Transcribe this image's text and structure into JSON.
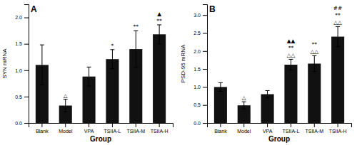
{
  "chart_data": [
    {
      "type": "bar",
      "title": "A",
      "categories": [
        "Blank",
        "Model",
        "VPA",
        "TSIIA-L",
        "TSIIA-M",
        "TSIIA-H"
      ],
      "values": [
        1.1,
        0.33,
        0.88,
        1.21,
        1.4,
        1.68
      ],
      "errors": [
        0.38,
        0.12,
        0.18,
        0.18,
        0.35,
        0.18
      ],
      "color": "#111111",
      "xlabel": "Group",
      "ylabel": "SYN mRNA",
      "ylim": [
        0,
        2.25
      ],
      "yticks": [
        {
          "value": 0.0,
          "label": "0.0"
        },
        0.5,
        {
          "value": 1.0,
          "label": "1.0"
        },
        1.5,
        {
          "value": 2.0,
          "label": "2.0"
        }
      ],
      "grid": false,
      "annotations": [
        {
          "category": "Model",
          "text": [
            "△"
          ]
        },
        {
          "category": "TSIIA-L",
          "text": [
            "*"
          ]
        },
        {
          "category": "TSIIA-M",
          "text": [
            "**"
          ]
        },
        {
          "category": "TSIIA-H",
          "text": [
            "▲",
            "**"
          ]
        }
      ]
    },
    {
      "type": "bar",
      "title": "B",
      "categories": [
        "Blank",
        "Model",
        "VPA",
        "TSIIA-L",
        "TSIIA-M",
        "TSIIA-H"
      ],
      "values": [
        1.0,
        0.49,
        0.8,
        1.62,
        1.65,
        2.4
      ],
      "errors": [
        0.12,
        0.1,
        0.1,
        0.15,
        0.22,
        0.28
      ],
      "color": "#111111",
      "xlabel": "Group",
      "ylabel": "PSD-95 mRNA",
      "ylim": [
        0,
        3.3
      ],
      "yticks": [
        {
          "value": 0.0,
          "label": "0.0"
        },
        0.5,
        {
          "value": 1.0,
          "label": "1.0"
        },
        1.5,
        {
          "value": 2.0,
          "label": "2.0"
        },
        2.5,
        {
          "value": 3.0,
          "label": "3.0"
        }
      ],
      "grid": false,
      "annotations": [
        {
          "category": "Model",
          "text": [
            "△"
          ]
        },
        {
          "category": "TSIIA-L",
          "text": [
            "▲▲",
            "**",
            "△△"
          ]
        },
        {
          "category": "TSIIA-M",
          "text": [
            "**",
            "△△"
          ]
        },
        {
          "category": "TSIIA-H",
          "text": [
            "##",
            "**",
            "△△"
          ]
        }
      ]
    }
  ]
}
